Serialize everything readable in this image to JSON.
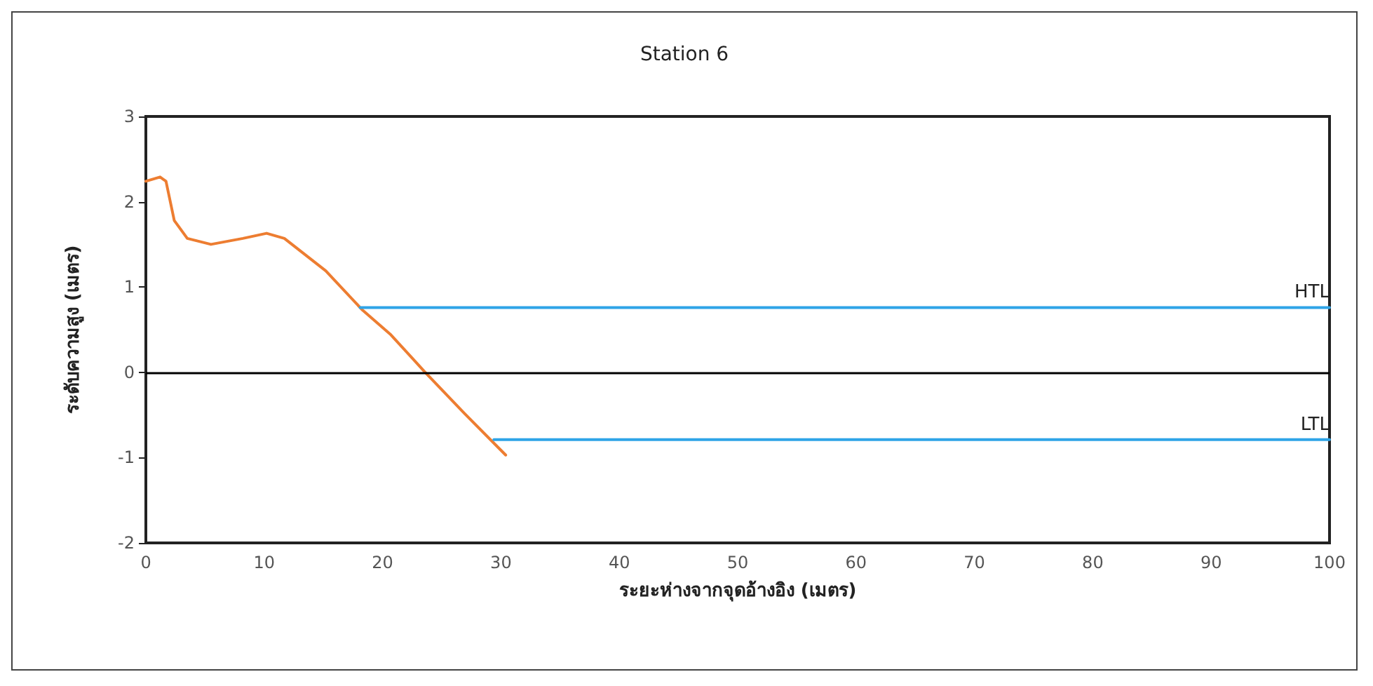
{
  "chart_data": {
    "type": "line",
    "title": "Station 6",
    "xlabel": "ระยะห่างจากจุดอ้างอิง (เมตร)",
    "ylabel": "ระดับความสูง (เมตร)",
    "xlim": [
      0,
      100
    ],
    "xticks": [
      0,
      10,
      20,
      30,
      40,
      50,
      60,
      70,
      80,
      90,
      100
    ],
    "ylim": [
      -2,
      3
    ],
    "yticks": [
      -2,
      -1,
      0,
      1,
      2,
      3
    ],
    "grid": false,
    "legend": false,
    "ref_lines": [
      {
        "axis": "y",
        "value": 0,
        "color": "#000000"
      }
    ],
    "series": [
      {
        "color": "#ed7d31",
        "x": [
          0,
          1.2,
          1.7,
          2.4,
          3.5,
          5.5,
          8.2,
          10.2,
          11.7,
          15.2,
          18.3,
          20.7,
          23.6,
          26.9,
          30.4
        ],
        "values": [
          2.24,
          2.29,
          2.24,
          1.78,
          1.57,
          1.5,
          1.57,
          1.63,
          1.57,
          1.19,
          0.73,
          0.44,
          0,
          -0.48,
          -0.97
        ]
      },
      {
        "name": "HTL",
        "color": "#2fa4e7",
        "x": [
          18.1,
          100
        ],
        "values": [
          0.76,
          0.76
        ]
      },
      {
        "name": "LTL",
        "color": "#2fa4e7",
        "x": [
          29.4,
          100
        ],
        "values": [
          -0.79,
          -0.79
        ]
      }
    ]
  }
}
